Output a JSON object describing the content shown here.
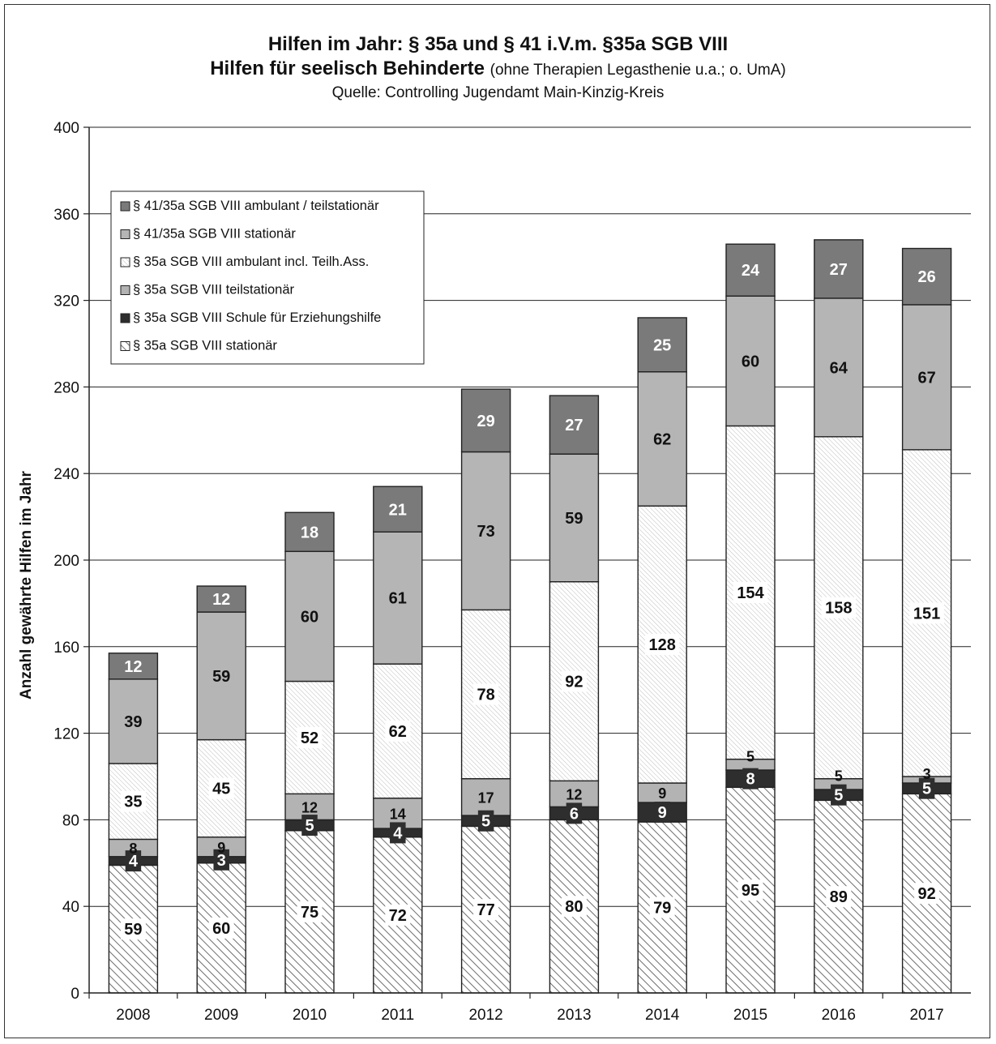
{
  "chart_data": {
    "type": "bar",
    "stacked": true,
    "title": "Hilfen im Jahr: § 35a und § 41 i.V.m. §35a SGB VIII",
    "subtitle_bold": "Hilfen für seelisch Behinderte",
    "subtitle_note": "(ohne Therapien Legasthenie u.a.; o. UmA)",
    "source": "Quelle: Controlling Jugendamt Main-Kinzig-Kreis",
    "xlabel": "",
    "ylabel": "Anzahl gewährte Hilfen im Jahr",
    "ylim": [
      0,
      400
    ],
    "yticks": [
      0,
      40,
      80,
      120,
      160,
      200,
      240,
      280,
      320,
      360,
      400
    ],
    "grid": true,
    "legend_position": "top-left",
    "categories": [
      "2008",
      "2009",
      "2010",
      "2011",
      "2012",
      "2013",
      "2014",
      "2015",
      "2016",
      "2017"
    ],
    "series": [
      {
        "name": "§ 35a SGB VIII stationär",
        "values": [
          59,
          60,
          75,
          72,
          77,
          80,
          79,
          95,
          89,
          92
        ],
        "pattern": "diag-dense",
        "color": "#ffffff"
      },
      {
        "name": "§ 35a SGB VIII Schule für Erziehungshilfe",
        "values": [
          4,
          3,
          5,
          4,
          5,
          6,
          9,
          8,
          5,
          5
        ],
        "pattern": "solid",
        "color": "#2e2e2e"
      },
      {
        "name": "§ 35a SGB VIII teilstationär",
        "values": [
          8,
          9,
          12,
          14,
          17,
          12,
          9,
          5,
          5,
          3
        ],
        "pattern": "solid",
        "color": "#b3b3b3"
      },
      {
        "name": "§ 35a SGB VIII ambulant incl. Teilh.Ass.",
        "values": [
          35,
          45,
          52,
          62,
          78,
          92,
          128,
          154,
          158,
          151
        ],
        "pattern": "diag-light",
        "color": "#ffffff"
      },
      {
        "name": "§ 41/35a SGB VIII stationär",
        "values": [
          39,
          59,
          60,
          61,
          73,
          59,
          62,
          60,
          64,
          67
        ],
        "pattern": "solid",
        "color": "#b5b5b5"
      },
      {
        "name": "§ 41/35a SGB VIII ambulant / teilstationär",
        "values": [
          12,
          12,
          18,
          21,
          29,
          27,
          25,
          24,
          27,
          26
        ],
        "pattern": "solid",
        "color": "#7a7a7a"
      }
    ]
  }
}
